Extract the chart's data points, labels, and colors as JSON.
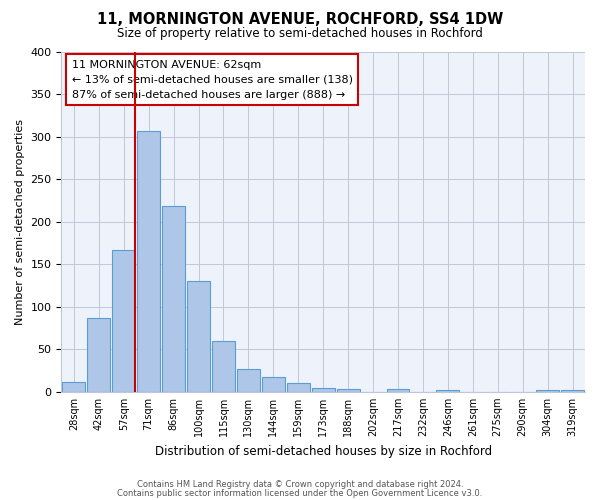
{
  "title": "11, MORNINGTON AVENUE, ROCHFORD, SS4 1DW",
  "subtitle": "Size of property relative to semi-detached houses in Rochford",
  "xlabel": "Distribution of semi-detached houses by size in Rochford",
  "ylabel": "Number of semi-detached properties",
  "bin_labels": [
    "28sqm",
    "42sqm",
    "57sqm",
    "71sqm",
    "86sqm",
    "100sqm",
    "115sqm",
    "130sqm",
    "144sqm",
    "159sqm",
    "173sqm",
    "188sqm",
    "202sqm",
    "217sqm",
    "232sqm",
    "246sqm",
    "261sqm",
    "275sqm",
    "290sqm",
    "304sqm",
    "319sqm"
  ],
  "bar_values": [
    12,
    87,
    167,
    307,
    218,
    130,
    60,
    27,
    17,
    10,
    4,
    3,
    0,
    3,
    0,
    2,
    0,
    0,
    0,
    2,
    2
  ],
  "bar_color": "#aec6e8",
  "bar_edge_color": "#5a9fd4",
  "vline_color": "#cc0000",
  "annotation_title": "11 MORNINGTON AVENUE: 62sqm",
  "annotation_line1": "← 13% of semi-detached houses are smaller (138)",
  "annotation_line2": "87% of semi-detached houses are larger (888) →",
  "annotation_box_color": "#ffffff",
  "annotation_box_edge": "#cc0000",
  "ylim": [
    0,
    400
  ],
  "yticks": [
    0,
    50,
    100,
    150,
    200,
    250,
    300,
    350,
    400
  ],
  "background_color": "#eef3fb",
  "footer_line1": "Contains HM Land Registry data © Crown copyright and database right 2024.",
  "footer_line2": "Contains public sector information licensed under the Open Government Licence v3.0."
}
